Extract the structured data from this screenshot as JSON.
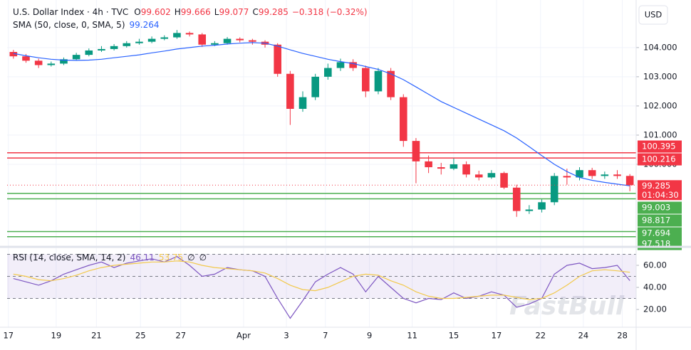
{
  "chart_data": [
    {
      "type": "candlestick",
      "title": "U.S. Dollar Index · 4h · TVC",
      "ohlc_labels": [
        "O",
        "H",
        "L",
        "C"
      ],
      "change": "−0.318 (−0.32%)",
      "currency": "USD",
      "watermark": "FastBull",
      "countdown": "01:04:30",
      "up_color": "#089981",
      "down_color": "#f23645",
      "grid": true,
      "xlim": [
        0,
        50
      ],
      "xticks": [
        {
          "value": 0.1,
          "label": "17"
        },
        {
          "value": 3.9,
          "label": "19"
        },
        {
          "value": 7.1,
          "label": "21"
        },
        {
          "value": 10.6,
          "label": "25"
        },
        {
          "value": 13.8,
          "label": "27"
        },
        {
          "value": 18.8,
          "label": "Apr"
        },
        {
          "value": 22.2,
          "label": "3"
        },
        {
          "value": 25.3,
          "label": "7"
        },
        {
          "value": 28.8,
          "label": "9"
        },
        {
          "value": 32.2,
          "label": "11"
        },
        {
          "value": 35.5,
          "label": "15"
        },
        {
          "value": 38.9,
          "label": "17"
        },
        {
          "value": 42.4,
          "label": "22"
        },
        {
          "value": 45.8,
          "label": "24"
        },
        {
          "value": 48.9,
          "label": "28"
        }
      ],
      "ylim": [
        97.22,
        105.63
      ],
      "yticks": [
        {
          "value": 104,
          "label": "104.000"
        },
        {
          "value": 103,
          "label": "103.000"
        },
        {
          "value": 102,
          "label": "102.000"
        },
        {
          "value": 101,
          "label": "101.000"
        },
        {
          "value": 100,
          "label": "100.000"
        }
      ],
      "open": [
        103.85,
        103.7,
        103.55,
        103.4,
        103.45,
        103.6,
        103.75,
        103.9,
        103.95,
        104.05,
        104.15,
        104.2,
        104.3,
        104.35,
        104.5,
        104.45,
        104.1,
        104.15,
        104.3,
        104.25,
        104.2,
        104.1,
        103.1,
        101.9,
        102.3,
        103.0,
        103.3,
        103.5,
        103.3,
        102.5,
        103.2,
        102.3,
        100.8,
        100.1,
        99.9,
        99.85,
        100.0,
        99.65,
        99.55,
        99.7,
        99.2,
        98.4,
        98.45,
        98.7,
        99.6,
        99.55,
        99.8,
        99.6,
        99.65,
        99.602
      ],
      "high": [
        103.92,
        103.78,
        103.62,
        103.52,
        103.66,
        103.82,
        103.97,
        104.05,
        104.12,
        104.22,
        104.3,
        104.38,
        104.42,
        104.6,
        104.55,
        104.5,
        104.22,
        104.36,
        104.35,
        104.3,
        104.25,
        104.15,
        103.2,
        102.5,
        103.1,
        103.45,
        103.62,
        103.6,
        103.38,
        103.3,
        103.3,
        102.4,
        100.9,
        100.3,
        100.05,
        100.2,
        100.1,
        99.78,
        99.8,
        99.75,
        99.3,
        98.6,
        98.8,
        99.7,
        99.85,
        99.9,
        99.88,
        99.75,
        99.8,
        99.666
      ],
      "low": [
        103.62,
        103.48,
        103.3,
        103.35,
        103.4,
        103.55,
        103.7,
        103.85,
        103.9,
        104.0,
        104.1,
        104.15,
        104.25,
        104.3,
        104.38,
        104.02,
        104.05,
        104.1,
        104.18,
        104.1,
        104.0,
        103.0,
        101.35,
        101.8,
        102.2,
        102.9,
        103.2,
        103.2,
        102.3,
        102.4,
        102.2,
        100.6,
        99.35,
        99.7,
        99.65,
        99.8,
        99.55,
        99.45,
        99.5,
        99.15,
        98.2,
        98.3,
        98.35,
        98.6,
        99.3,
        99.45,
        99.5,
        99.5,
        99.5,
        99.077
      ],
      "close": [
        103.7,
        103.55,
        103.4,
        103.45,
        103.6,
        103.75,
        103.9,
        103.95,
        104.05,
        104.15,
        104.2,
        104.3,
        104.35,
        104.5,
        104.45,
        104.1,
        104.15,
        104.3,
        104.25,
        104.2,
        104.1,
        103.1,
        101.9,
        102.3,
        103.0,
        103.3,
        103.5,
        103.3,
        102.5,
        103.2,
        102.3,
        100.8,
        100.1,
        99.9,
        99.85,
        100.0,
        99.65,
        99.55,
        99.7,
        99.2,
        98.4,
        98.45,
        98.7,
        99.6,
        99.55,
        99.8,
        99.6,
        99.65,
        99.6,
        99.285
      ],
      "sma": {
        "label": "SMA (50, close, 0, SMA, 5)",
        "color": "#2962ff",
        "values": [
          103.8,
          103.72,
          103.65,
          103.6,
          103.57,
          103.56,
          103.57,
          103.6,
          103.65,
          103.7,
          103.75,
          103.82,
          103.88,
          103.95,
          104.0,
          104.05,
          104.08,
          104.12,
          104.15,
          104.17,
          104.15,
          104.05,
          103.92,
          103.8,
          103.7,
          103.6,
          103.52,
          103.45,
          103.35,
          103.25,
          103.1,
          102.9,
          102.65,
          102.4,
          102.15,
          101.95,
          101.75,
          101.55,
          101.35,
          101.15,
          100.9,
          100.6,
          100.3,
          100.0,
          99.75,
          99.55,
          99.45,
          99.38,
          99.32,
          99.264
        ]
      },
      "resistance": {
        "color": "#f23645",
        "values": [
          100.395,
          100.216
        ]
      },
      "support": {
        "color": "#4caf50",
        "values": [
          99.003,
          98.817,
          97.694,
          97.518
        ]
      }
    },
    {
      "type": "line",
      "title": "RSI (14, close, SMA, 14, 2)",
      "extra_labels": [
        "∅",
        "∅"
      ],
      "ylim": [
        3.9,
        74.8
      ],
      "yticks": [
        {
          "value": 60,
          "label": "60.00"
        },
        {
          "value": 40,
          "label": "40.00"
        },
        {
          "value": 20,
          "label": "20.00"
        }
      ],
      "levels": [
        70,
        50,
        30
      ],
      "band_color": "#7e57c2",
      "series": [
        {
          "color": "#7e57c2",
          "values": [
            48,
            45,
            42,
            46,
            52,
            56,
            60,
            63,
            58,
            62,
            64,
            66,
            63,
            68,
            60,
            50,
            52,
            58,
            56,
            55,
            50,
            30,
            12,
            28,
            45,
            52,
            58,
            52,
            36,
            50,
            40,
            30,
            26,
            30,
            29,
            35,
            30,
            32,
            36,
            33,
            22,
            25,
            30,
            52,
            60,
            62,
            57,
            58,
            60,
            46.11
          ]
        },
        {
          "color": "#f2c94c",
          "values": [
            52,
            50,
            47,
            46,
            48,
            51,
            55,
            58,
            60,
            61,
            62,
            63,
            63,
            64,
            63,
            60,
            58,
            57,
            56,
            55,
            53,
            48,
            42,
            38,
            37,
            40,
            45,
            50,
            52,
            51,
            46,
            42,
            36,
            32,
            30,
            30,
            31,
            32,
            33,
            33,
            31,
            29,
            30,
            35,
            42,
            50,
            55,
            56,
            55,
            53.75
          ]
        }
      ]
    }
  ]
}
